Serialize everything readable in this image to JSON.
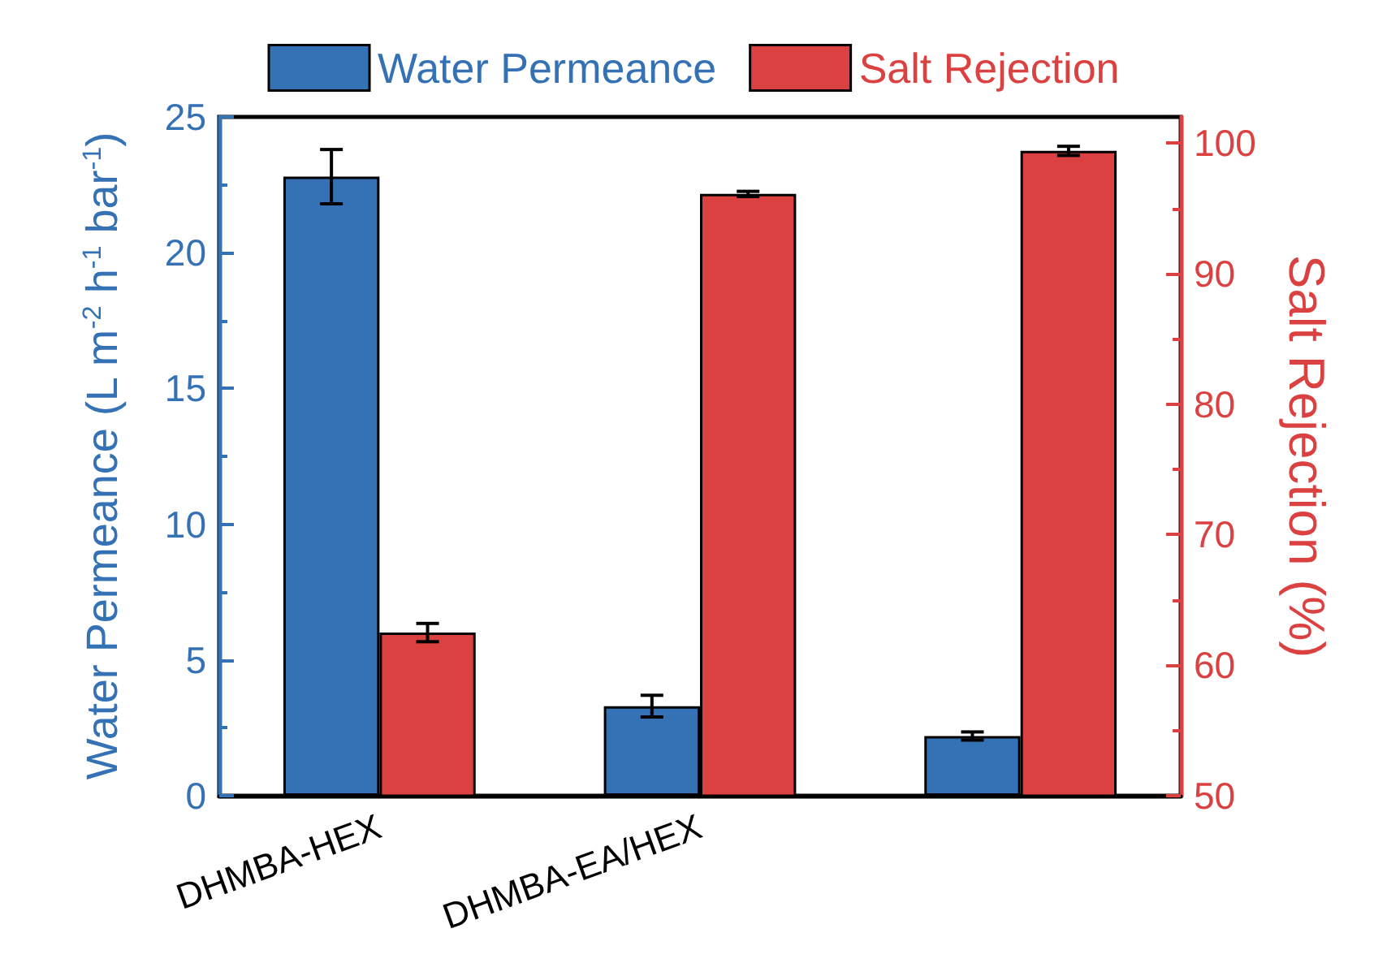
{
  "chart_data": {
    "type": "bar",
    "categories": [
      "DHMBA-HEX",
      "DHMBA-EA/HEX",
      null
    ],
    "ylabel": "Water Permeance (L m$^{-2}$ h$^{-1}$ bar$^{-1}$)",
    "y2label": "Salt Rejection (%)",
    "series": [
      {
        "name": "Water Permeance",
        "color": "#3471b5",
        "values": [
          22.8,
          3.3,
          2.2
        ],
        "errors": [
          1.0,
          0.4,
          0.15
        ]
      },
      {
        "name": "Salt Rejection",
        "color": "#dc4142",
        "axis": "y2",
        "values": [
          62.5,
          96.1,
          99.4
        ],
        "errors": [
          0.7,
          0.2,
          0.35
        ]
      }
    ],
    "ylim": [
      0,
      25
    ],
    "yticks": [
      0,
      5,
      10,
      15,
      20,
      25
    ],
    "y2lim": [
      50,
      102
    ],
    "y2ticks": [
      50,
      60,
      70,
      80,
      90,
      100
    ],
    "grid": false,
    "legend": "top"
  }
}
